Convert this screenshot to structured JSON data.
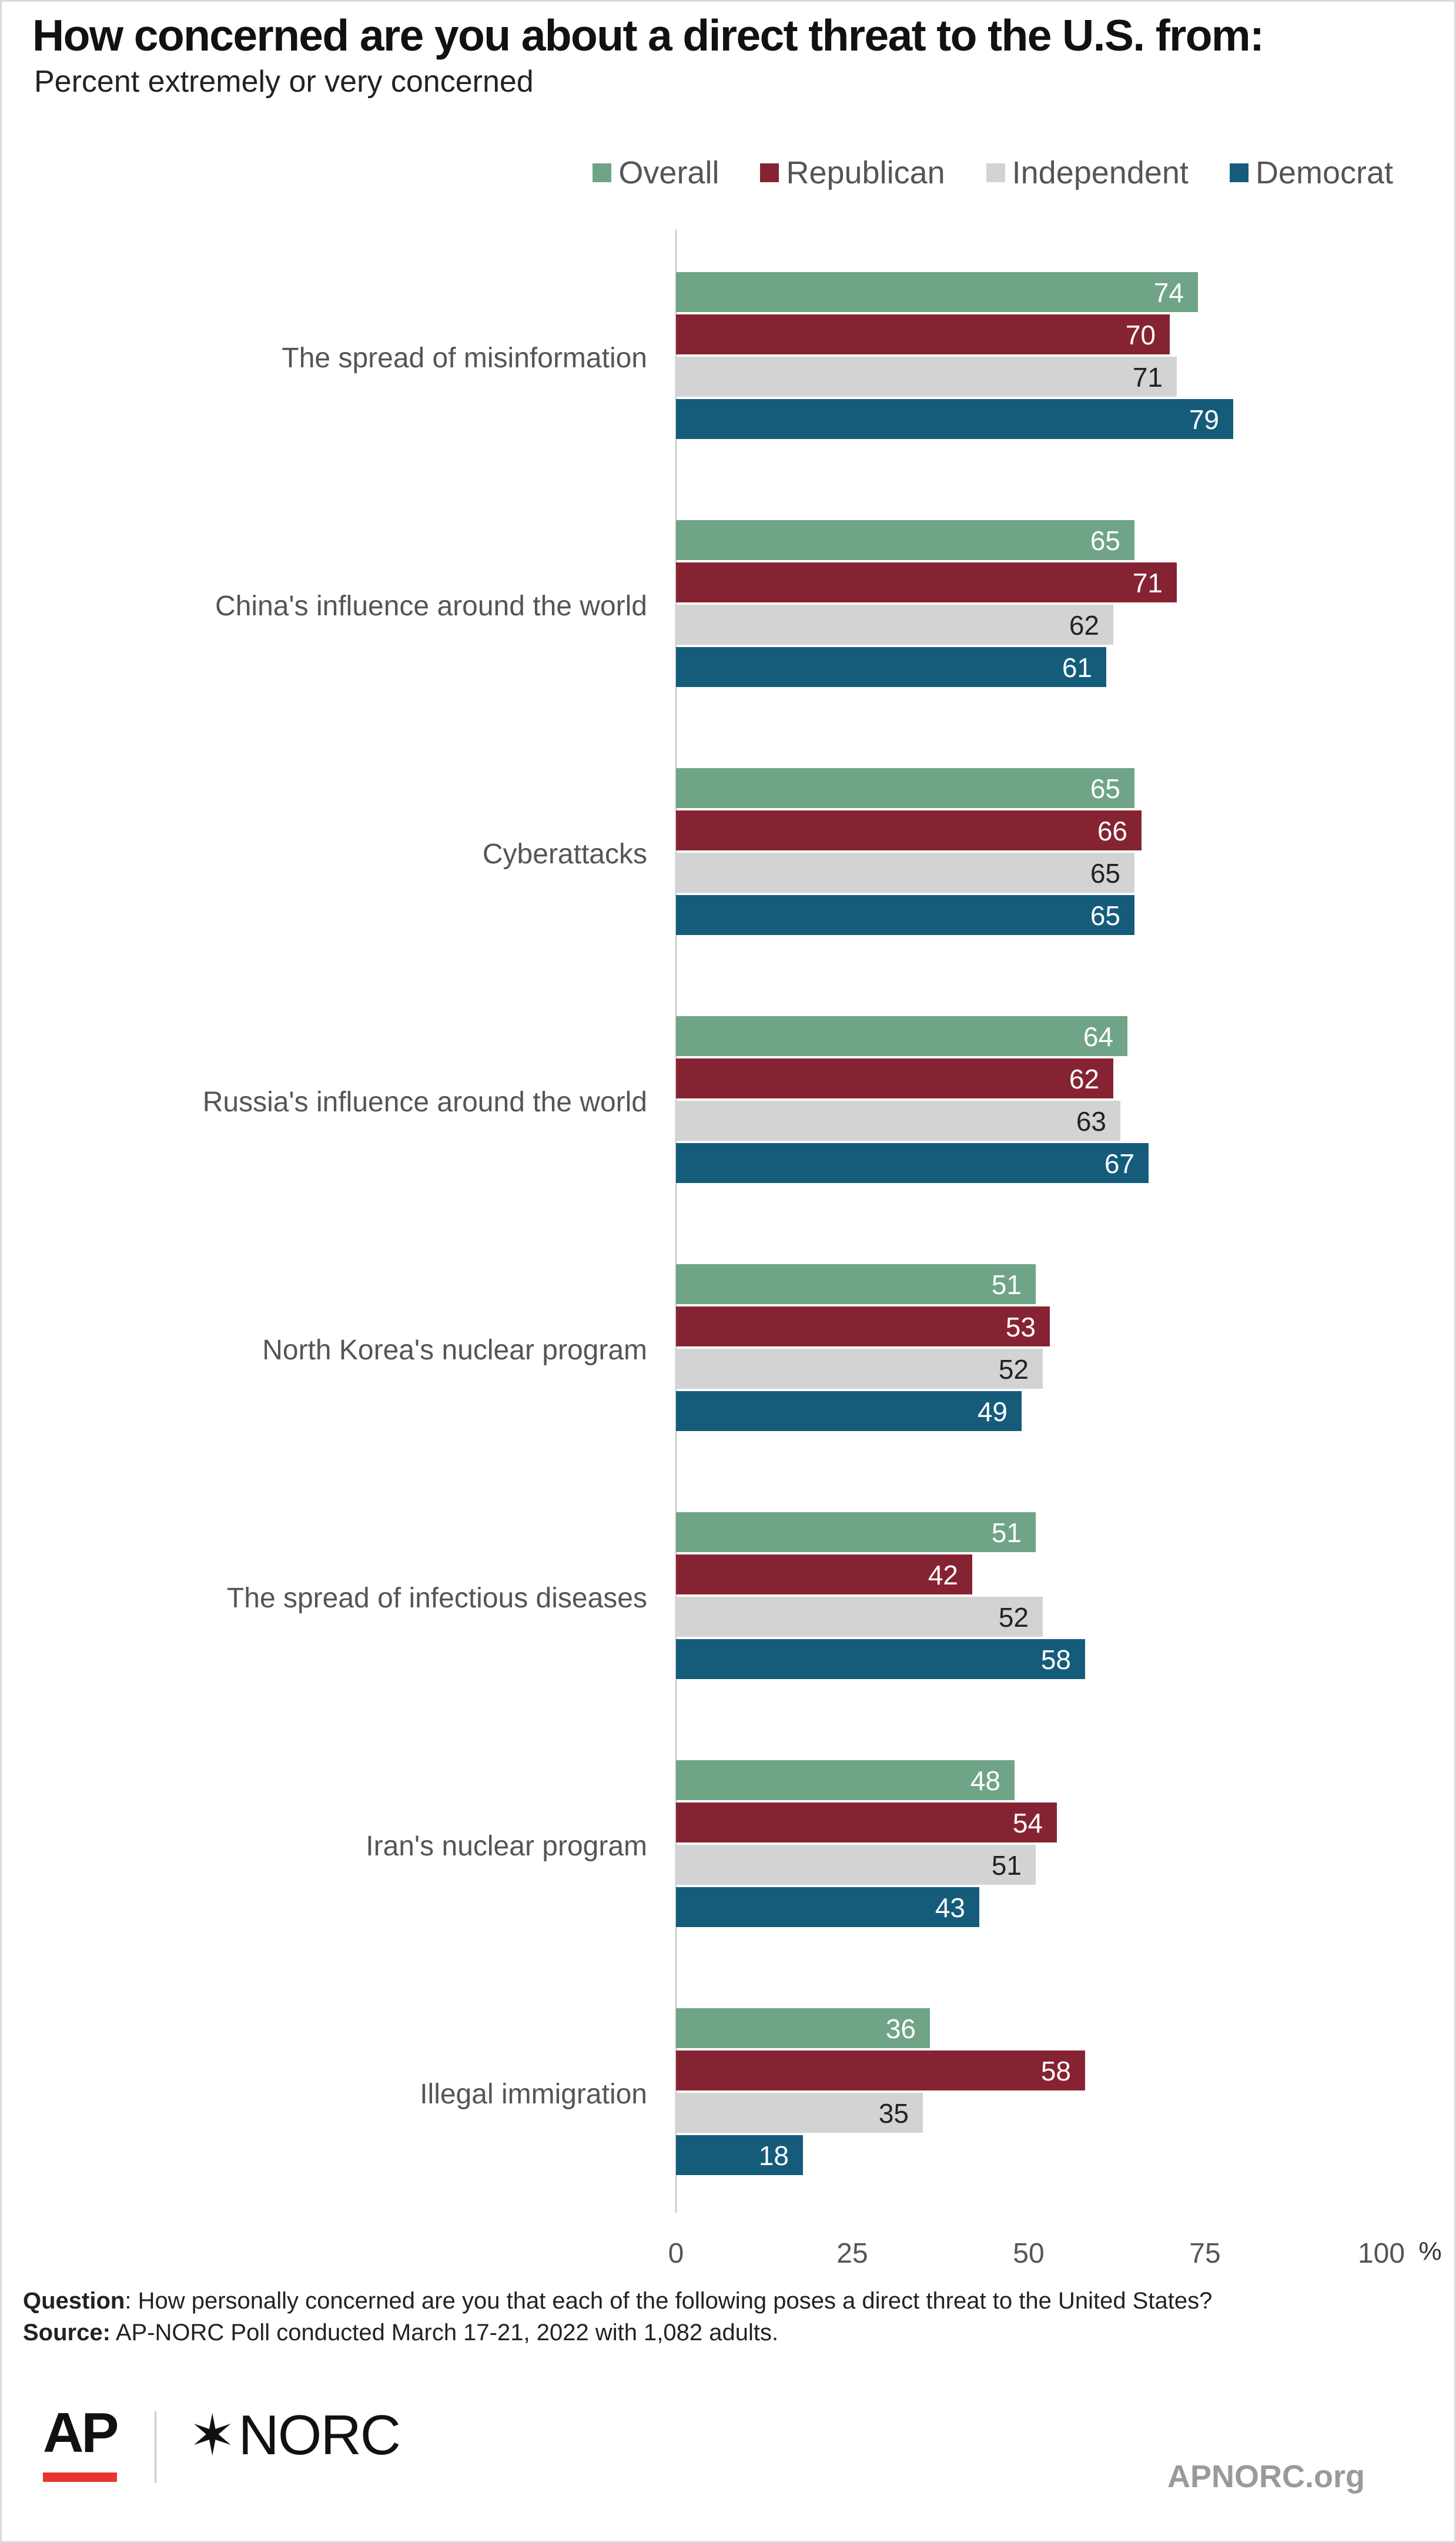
{
  "header": {
    "title": "How concerned are you about a direct threat to the U.S. from:",
    "subtitle": "Percent extremely or very concerned"
  },
  "colors": {
    "overall": "#6fa487",
    "republican": "#862332",
    "independent": "#d3d3d3",
    "democrat": "#155c7b",
    "label_light": "#ffffff",
    "label_dark": "#222222"
  },
  "chart_data": {
    "type": "bar",
    "orientation": "horizontal",
    "categories": [
      "The spread of misinformation",
      "China's influence around the world",
      "Cyberattacks",
      "Russia's influence around the world",
      "North Korea's nuclear program",
      "The spread of infectious diseases",
      "Iran's nuclear program",
      "Illegal immigration"
    ],
    "series": [
      {
        "name": "Overall",
        "values": [
          74,
          65,
          65,
          64,
          51,
          51,
          48,
          36
        ]
      },
      {
        "name": "Republican",
        "values": [
          70,
          71,
          66,
          62,
          53,
          42,
          54,
          58
        ]
      },
      {
        "name": "Independent",
        "values": [
          71,
          62,
          65,
          63,
          52,
          52,
          51,
          35
        ]
      },
      {
        "name": "Democrat",
        "values": [
          79,
          61,
          65,
          67,
          49,
          58,
          43,
          18
        ]
      }
    ],
    "xlim": [
      0,
      100
    ],
    "xticks": [
      "0",
      "25",
      "50",
      "75",
      "100"
    ],
    "xunit": "%",
    "legend_position": "top-right",
    "grid": false
  },
  "footer": {
    "question_label": "Question",
    "question_text": ": How personally concerned are you that each of the following poses a direct threat to the United States?",
    "source_label": "Source:",
    "source_text": " AP-NORC Poll conducted March 17-21, 2022 with 1,082 adults.",
    "logo_ap": "AP",
    "logo_norc_star": "✶",
    "logo_norc": "NORC",
    "site": "APNORC.org"
  }
}
